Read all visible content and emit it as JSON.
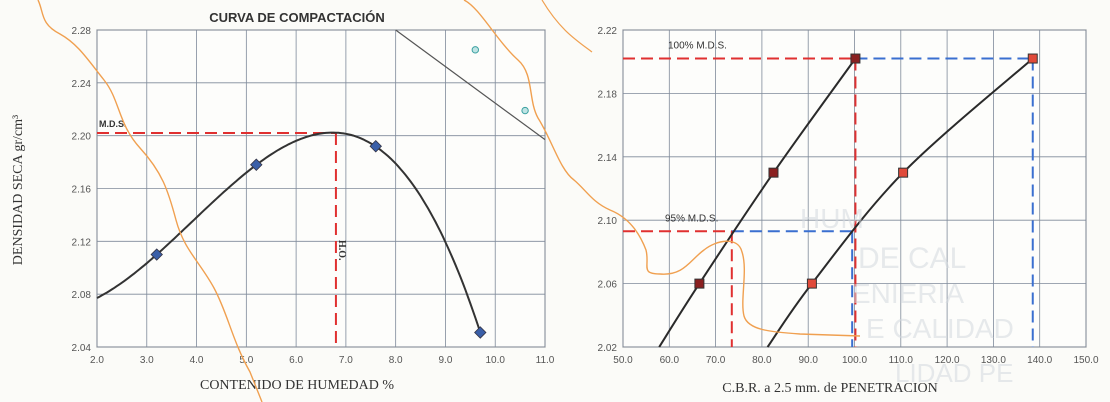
{
  "chart_data": [
    {
      "type": "scatter",
      "title": "CURVA DE COMPACTACIÓN",
      "xlabel": "CONTENIDO DE HUMEDAD %",
      "ylabel": "DENSIDAD SECA gr/cm³",
      "xlim": [
        2.0,
        11.0
      ],
      "ylim": [
        2.04,
        2.28
      ],
      "x_ticks": [
        "2.0",
        "3.0",
        "4.0",
        "5.0",
        "6.0",
        "7.0",
        "8.0",
        "9.0",
        "10.0",
        "11.0"
      ],
      "y_ticks": [
        "2.04",
        "2.08",
        "2.12",
        "2.16",
        "2.20",
        "2.24",
        "2.28"
      ],
      "grid": true,
      "series": [
        {
          "name": "",
          "role": "points",
          "x": [
            3.2,
            5.2,
            7.6,
            9.7
          ],
          "y": [
            2.11,
            2.178,
            2.192,
            2.051
          ],
          "color": "#3a5fa8"
        },
        {
          "name": "",
          "role": "saturation",
          "x": [
            9.6,
            10.6
          ],
          "y": [
            2.265,
            2.219
          ],
          "color": "#3aa0a0"
        }
      ],
      "annotations": {
        "mds_label": "M.D.S.",
        "ocw_label": "H.O.",
        "mds_value": 2.202,
        "ocw_value": 6.8
      }
    },
    {
      "type": "line",
      "title": "",
      "xlabel": "C.B.R. a 2.5 mm. de PENETRACION",
      "ylabel": "",
      "xlim": [
        50.0,
        150.0
      ],
      "ylim": [
        2.02,
        2.22
      ],
      "x_ticks": [
        "50.0",
        "60.0",
        "70.0",
        "80.0",
        "90.0",
        "100.0",
        "110.0",
        "120.0",
        "130.0",
        "140.0",
        "150.0"
      ],
      "y_ticks": [
        "2.02",
        "2.06",
        "2.10",
        "2.14",
        "2.18",
        "2.22"
      ],
      "grid": true,
      "series": [
        {
          "name": "",
          "x": [
            66.5,
            82.5,
            100.2
          ],
          "y": [
            2.06,
            2.13,
            2.202
          ],
          "color": "#8a2020"
        },
        {
          "name": "",
          "x": [
            90.8,
            110.5,
            138.5
          ],
          "y": [
            2.06,
            2.13,
            2.202
          ],
          "color": "#e04a3a"
        }
      ],
      "annotations": {
        "label_100": "100% M.D.S.",
        "label_95": "95% M.D.S.",
        "mds_100": 2.202,
        "mds_95": 2.093,
        "cbr_a_95": 73.5,
        "cbr_a_100": 100.2,
        "cbr_b_95": 99.5,
        "cbr_b_100": 138.5
      }
    }
  ],
  "watermark": [
    "HUM",
    "DE CAL",
    "ENIERIA",
    "E CALIDAD",
    "LIDAD PE"
  ]
}
